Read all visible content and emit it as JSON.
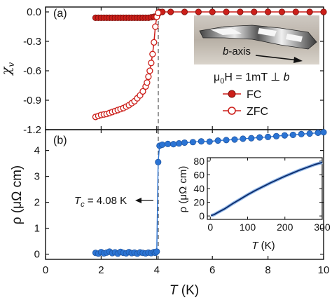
{
  "chart_data": [
    {
      "panel_label": "(a)",
      "type": "scatter",
      "ylabel_main": "χ",
      "ylabel_sub": "v",
      "xlim": [
        0,
        10
      ],
      "ylim": [
        -1.2,
        0.0
      ],
      "yticks": [
        "0.0",
        "-0.3",
        "-0.6",
        "-0.9",
        "-1.2"
      ],
      "legend_placement": "right",
      "annotation_field": {
        "mu": "μ",
        "zero": "0",
        "rest": "H = 1mT ⊥ ",
        "b": "b"
      },
      "photo_label": {
        "b": "b",
        "rest": "-axis"
      },
      "series": [
        {
          "name": "FC",
          "marker": "filled-circle",
          "color": "#cc1f1a",
          "x": [
            1.8,
            1.9,
            2.0,
            2.1,
            2.2,
            2.3,
            2.4,
            2.5,
            2.6,
            2.7,
            2.8,
            2.9,
            3.0,
            3.1,
            3.2,
            3.3,
            3.4,
            3.5,
            3.6,
            3.7,
            3.8,
            3.9,
            4.0,
            4.05,
            4.1,
            4.2,
            4.5,
            5.0,
            5.5,
            6.0,
            6.5,
            7.0,
            7.5,
            8.0,
            8.5,
            9.0,
            9.5,
            10.0
          ],
          "y": [
            -0.06,
            -0.06,
            -0.06,
            -0.06,
            -0.06,
            -0.06,
            -0.06,
            -0.06,
            -0.06,
            -0.06,
            -0.06,
            -0.06,
            -0.06,
            -0.06,
            -0.06,
            -0.06,
            -0.06,
            -0.06,
            -0.06,
            -0.06,
            -0.055,
            -0.05,
            -0.04,
            -0.02,
            0.0,
            0.0,
            0.0,
            0.0,
            0.0,
            0.0,
            0.0,
            0.0,
            0.0,
            0.0,
            0.0,
            0.0,
            0.0,
            0.0
          ]
        },
        {
          "name": "ZFC",
          "marker": "open-circle",
          "color": "#cc1f1a",
          "x": [
            1.8,
            1.9,
            2.0,
            2.1,
            2.2,
            2.3,
            2.4,
            2.5,
            2.6,
            2.7,
            2.8,
            2.9,
            3.0,
            3.1,
            3.2,
            3.3,
            3.4,
            3.5,
            3.6,
            3.65,
            3.7,
            3.75,
            3.8,
            3.85,
            3.9,
            3.95,
            4.0,
            4.05
          ],
          "y": [
            -1.07,
            -1.06,
            -1.05,
            -1.045,
            -1.04,
            -1.03,
            -1.02,
            -1.01,
            -1.0,
            -0.99,
            -0.98,
            -0.965,
            -0.95,
            -0.93,
            -0.91,
            -0.88,
            -0.85,
            -0.81,
            -0.76,
            -0.72,
            -0.66,
            -0.6,
            -0.52,
            -0.43,
            -0.31,
            -0.15,
            -0.05,
            -0.01
          ]
        }
      ],
      "vline_x": 4.08
    },
    {
      "panel_label": "(b)",
      "type": "scatter",
      "ylabel": "ρ (μΩ cm)",
      "xlabel": "T (K)",
      "xlim": [
        0,
        10
      ],
      "ylim": [
        0,
        4.2
      ],
      "yticks": [
        "0",
        "1",
        "2",
        "3",
        "4"
      ],
      "xticks": [
        "0",
        "2",
        "4",
        "6",
        "8",
        "10"
      ],
      "annotation": {
        "T": "T",
        "c": "c",
        "rest": " = 4.08 K"
      },
      "series": [
        {
          "name": "",
          "color": "#2b74d4",
          "x": [
            1.8,
            1.9,
            2.0,
            2.1,
            2.2,
            2.3,
            2.4,
            2.5,
            2.6,
            2.7,
            2.8,
            2.9,
            3.0,
            3.1,
            3.2,
            3.3,
            3.4,
            3.5,
            3.6,
            3.7,
            3.8,
            3.9,
            3.95,
            4.0,
            4.05,
            4.1,
            4.2,
            4.4,
            4.6,
            4.8,
            5.0,
            5.3,
            5.6,
            5.9,
            6.2,
            6.5,
            6.8,
            7.1,
            7.4,
            7.7,
            8.0,
            8.3,
            8.6,
            8.9,
            9.2,
            9.5,
            9.8,
            10.0
          ],
          "y": [
            0.05,
            0.02,
            0.08,
            0.03,
            0.06,
            0.1,
            0.04,
            0.07,
            0.02,
            0.09,
            0.05,
            0.03,
            0.08,
            0.04,
            0.06,
            0.02,
            0.07,
            0.05,
            0.03,
            0.06,
            0.04,
            0.08,
            0.05,
            0.1,
            3.55,
            4.18,
            4.22,
            4.25,
            4.24,
            4.27,
            4.3,
            4.32,
            4.35,
            4.34,
            4.38,
            4.4,
            4.42,
            4.45,
            4.47,
            4.5,
            4.52,
            4.55,
            4.58,
            4.6,
            4.63,
            4.65,
            4.68,
            4.7
          ]
        }
      ],
      "vline_x": 4.08
    },
    {
      "panel_label": "inset",
      "type": "line",
      "ylabel": "ρ (μΩ cm)",
      "xlabel": "T (K)",
      "xlim": [
        0,
        300
      ],
      "ylim": [
        0,
        80
      ],
      "xticks": [
        "0",
        "100",
        "200",
        "300"
      ],
      "yticks": [
        "0",
        "20",
        "40",
        "60",
        "80"
      ],
      "series": [
        {
          "name": "",
          "color": "#0a2a6a",
          "x": [
            2,
            10,
            20,
            40,
            60,
            80,
            100,
            120,
            140,
            160,
            180,
            200,
            220,
            240,
            260,
            280,
            300
          ],
          "y": [
            0.5,
            2,
            5,
            11,
            18,
            24.5,
            31,
            37,
            42.5,
            48,
            53,
            58,
            62.5,
            67,
            71,
            75,
            78
          ]
        }
      ]
    }
  ]
}
